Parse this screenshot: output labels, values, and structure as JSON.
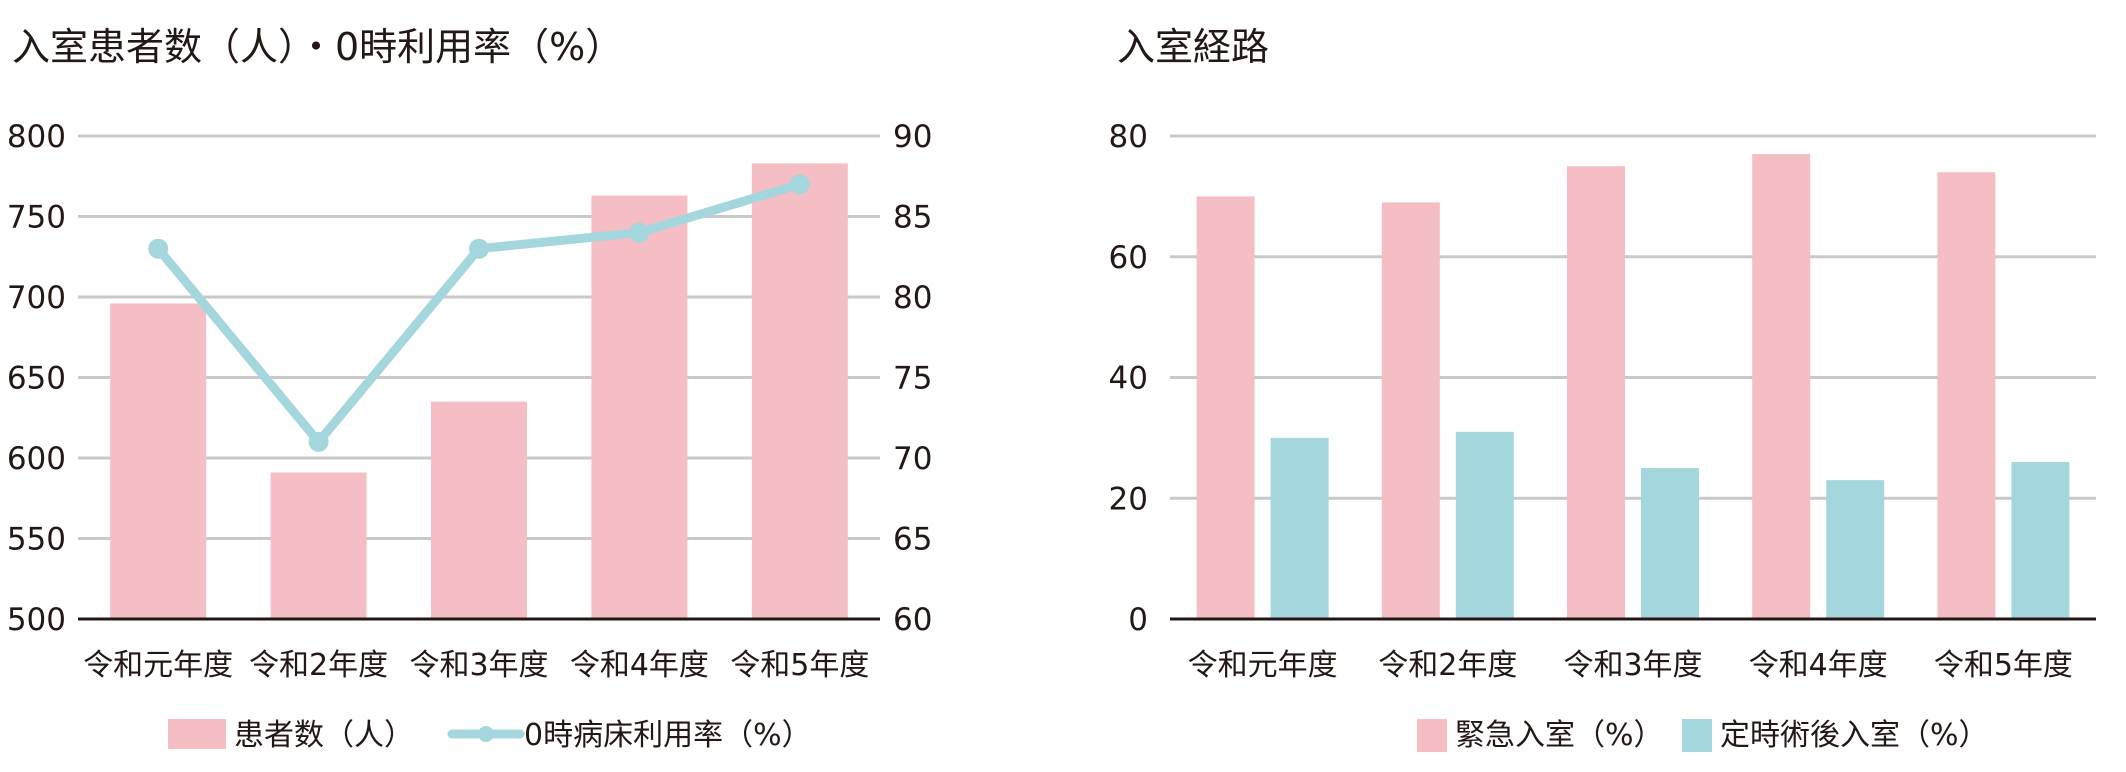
{
  "colors": {
    "pink": "#f5bdc4",
    "teal": "#a4d7dd",
    "grid": "#c9c9c9",
    "axis": "#231815",
    "text": "#231815"
  },
  "chart_data": [
    {
      "type": "bar",
      "title": "入室患者数（人）・0時利用率（%）",
      "categories": [
        "令和元年度",
        "令和2年度",
        "令和3年度",
        "令和4年度",
        "令和5年度"
      ],
      "ylim": [
        500,
        800
      ],
      "y2lim": [
        60,
        90
      ],
      "yticks": [
        "500",
        "550",
        "600",
        "650",
        "700",
        "750",
        "800"
      ],
      "y2ticks": [
        "60",
        "65",
        "70",
        "75",
        "80",
        "85",
        "90"
      ],
      "grid": true,
      "legend_position": "bottom",
      "series": [
        {
          "name": "患者数（人）",
          "type": "bar",
          "axis": "left",
          "color": "#f5bdc4",
          "values": [
            696,
            591,
            635,
            763,
            783
          ]
        },
        {
          "name": "0時病床利用率（%）",
          "type": "line",
          "axis": "right",
          "color": "#a4d7dd",
          "values": [
            83,
            71,
            83,
            84,
            87
          ]
        }
      ]
    },
    {
      "type": "bar",
      "title": "入室経路",
      "categories": [
        "令和元年度",
        "令和2年度",
        "令和3年度",
        "令和4年度",
        "令和5年度"
      ],
      "ylim": [
        0,
        80
      ],
      "yticks": [
        "0",
        "20",
        "40",
        "60",
        "80"
      ],
      "grid": true,
      "legend_position": "bottom",
      "series": [
        {
          "name": "緊急入室（%）",
          "color": "#f5bdc4",
          "values": [
            70,
            69,
            75,
            77,
            74
          ]
        },
        {
          "name": "定時術後入室（%）",
          "color": "#a4d7dd",
          "values": [
            30,
            31,
            25,
            23,
            26
          ]
        }
      ]
    }
  ]
}
